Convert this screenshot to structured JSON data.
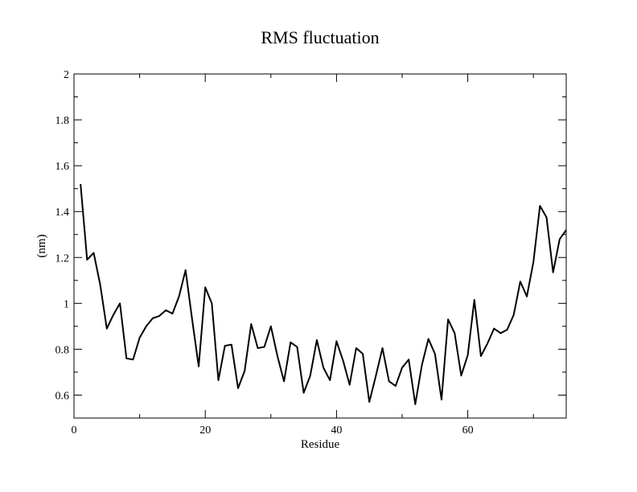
{
  "chart_data": {
    "type": "line",
    "title": "RMS fluctuation",
    "xlabel": "Residue",
    "ylabel": "(nm)",
    "xlim": [
      0,
      75
    ],
    "ylim": [
      0.5,
      2
    ],
    "x_ticks": [
      0,
      20,
      40,
      60
    ],
    "x_tick_labels": [
      "0",
      "20",
      "40",
      "60"
    ],
    "x_minor_ticks": [
      10,
      30,
      50,
      70
    ],
    "y_ticks": [
      0.6,
      0.8,
      1,
      1.2,
      1.4,
      1.6,
      1.8,
      2
    ],
    "y_tick_labels": [
      "0.6",
      "0.8",
      "1",
      "1.2",
      "1.4",
      "1.6",
      "1.8",
      "2"
    ],
    "y_minor_ticks": [
      0.5,
      0.7,
      0.9,
      1.1,
      1.3,
      1.5,
      1.7,
      1.9
    ],
    "grid": false,
    "line_color": "#000000",
    "series": [
      {
        "x": [
          1,
          2,
          3,
          4,
          5,
          6,
          7,
          8,
          9,
          10,
          11,
          12,
          13,
          14,
          15,
          16,
          17,
          18,
          19,
          20,
          21,
          22,
          23,
          24,
          25,
          26,
          27,
          28,
          29,
          30,
          31,
          32,
          33,
          34,
          35,
          36,
          37,
          38,
          39,
          40,
          41,
          42,
          43,
          44,
          45,
          46,
          47,
          48,
          49,
          50,
          51,
          52,
          53,
          54,
          55,
          56,
          57,
          58,
          59,
          60,
          61,
          62,
          63,
          64,
          65,
          66,
          67,
          68,
          69,
          70,
          71,
          72,
          73,
          74,
          75
        ],
        "values": [
          1.52,
          1.19,
          1.22,
          1.08,
          0.89,
          0.95,
          1.0,
          0.76,
          0.755,
          0.85,
          0.9,
          0.935,
          0.945,
          0.97,
          0.955,
          1.03,
          1.145,
          0.93,
          0.725,
          1.07,
          1.0,
          0.665,
          0.815,
          0.82,
          0.63,
          0.705,
          0.91,
          0.805,
          0.81,
          0.9,
          0.77,
          0.66,
          0.83,
          0.81,
          0.61,
          0.685,
          0.84,
          0.72,
          0.665,
          0.835,
          0.75,
          0.645,
          0.805,
          0.78,
          0.57,
          0.685,
          0.805,
          0.66,
          0.64,
          0.72,
          0.755,
          0.56,
          0.73,
          0.845,
          0.78,
          0.58,
          0.93,
          0.87,
          0.685,
          0.775,
          1.015,
          0.77,
          0.825,
          0.89,
          0.87,
          0.885,
          0.95,
          1.095,
          1.03,
          1.18,
          1.425,
          1.375,
          1.135,
          1.28,
          1.32
        ]
      }
    ]
  }
}
